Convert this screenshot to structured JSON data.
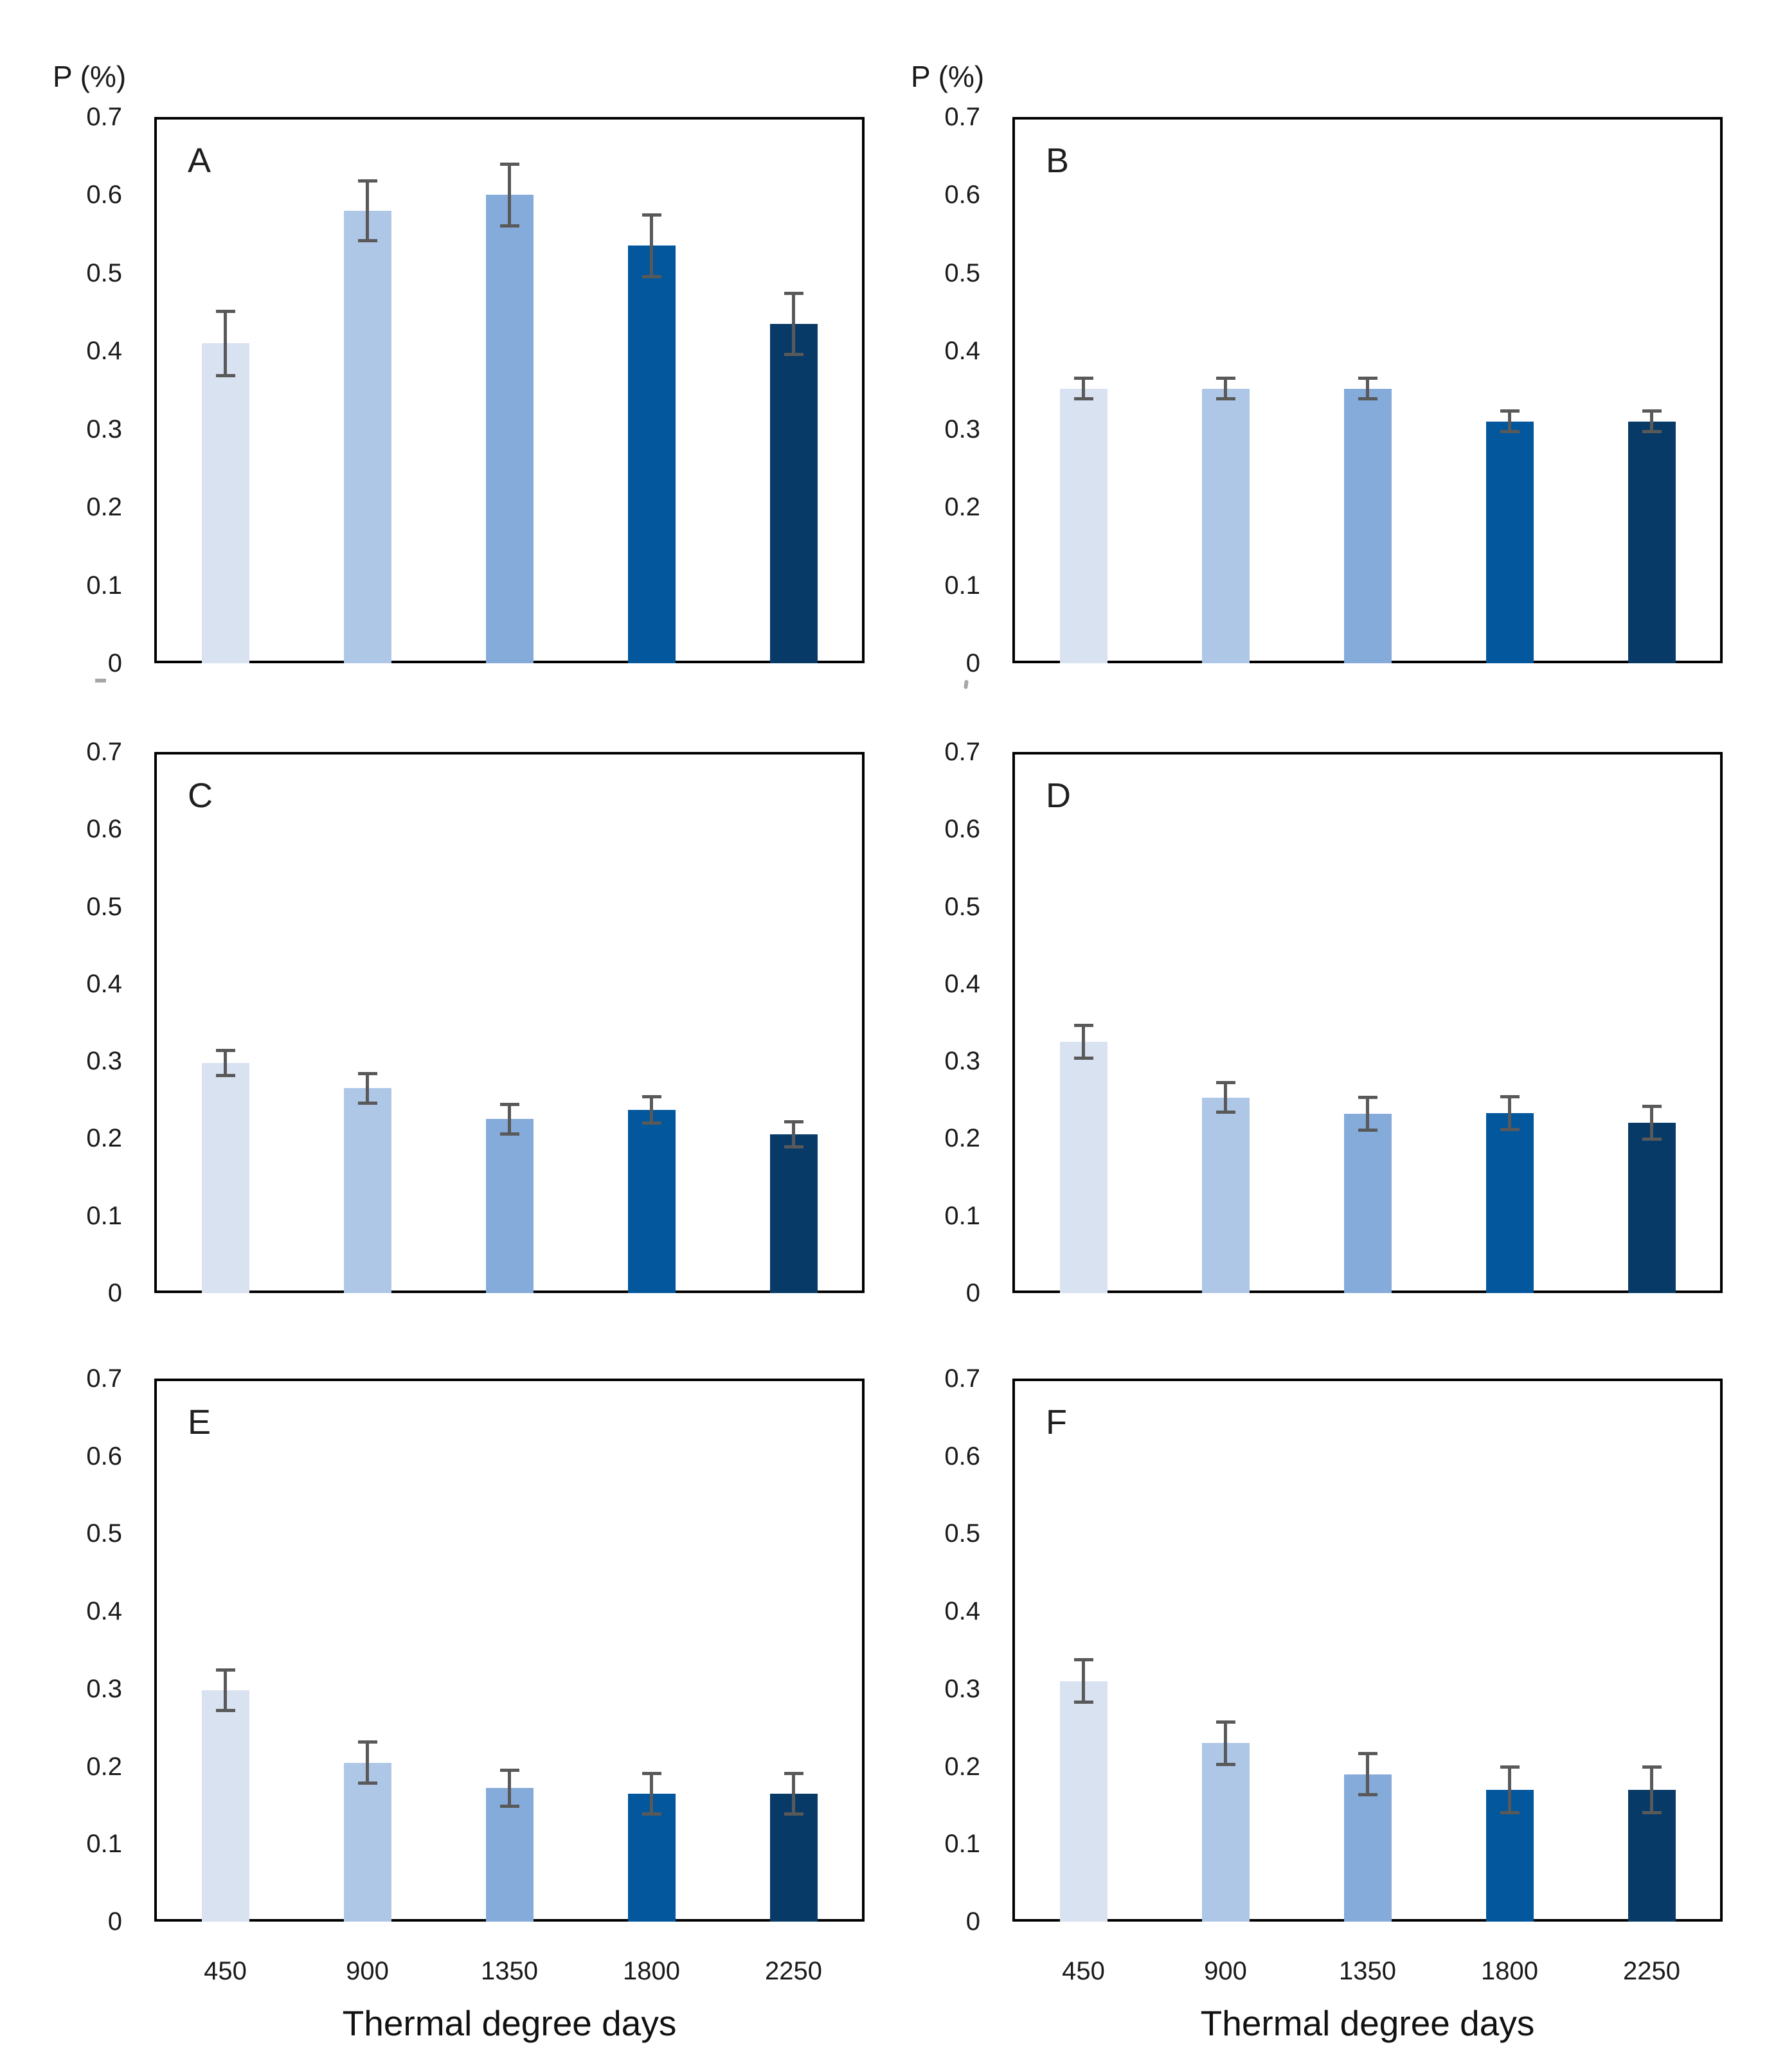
{
  "figure": {
    "y_axis_title": "P (%)",
    "x_axis_title": "Thermal degree days",
    "y_ticks": [
      "0.7",
      "0.6",
      "0.5",
      "0.4",
      "0.3",
      "0.2",
      "0.1",
      "0"
    ],
    "x_ticks": [
      "450",
      "900",
      "1350",
      "1800",
      "2250"
    ],
    "panel_letters": [
      "A",
      "B",
      "C",
      "D",
      "E",
      "F"
    ]
  },
  "colors": {
    "bar_shades": [
      "#d9e2f1",
      "#afc7e7",
      "#85abdb",
      "#02579d",
      "#073a66"
    ],
    "error_bar": "#595959",
    "axis": "#000000",
    "text": "#1a1a1a"
  },
  "chart_data": [
    {
      "panel": "A",
      "type": "bar",
      "categories": [
        450,
        900,
        1350,
        1800,
        2250
      ],
      "values": [
        0.41,
        0.58,
        0.6,
        0.535,
        0.435
      ],
      "errors": [
        0.04,
        0.037,
        0.038,
        0.038,
        0.038
      ],
      "xlabel": "Thermal degree days",
      "ylabel": "P (%)",
      "ylim": [
        0,
        0.7
      ],
      "grid": false,
      "legend": "none"
    },
    {
      "panel": "B",
      "type": "bar",
      "categories": [
        450,
        900,
        1350,
        1800,
        2250
      ],
      "values": [
        0.352,
        0.352,
        0.352,
        0.31,
        0.31
      ],
      "errors": [
        0.012,
        0.012,
        0.012,
        0.012,
        0.012
      ],
      "xlabel": "Thermal degree days",
      "ylabel": "P (%)",
      "ylim": [
        0,
        0.7
      ],
      "grid": false,
      "legend": "none"
    },
    {
      "panel": "C",
      "type": "bar",
      "categories": [
        450,
        900,
        1350,
        1800,
        2250
      ],
      "values": [
        0.298,
        0.265,
        0.225,
        0.237,
        0.205
      ],
      "errors": [
        0.015,
        0.018,
        0.018,
        0.016,
        0.015
      ],
      "xlabel": "Thermal degree days",
      "ylabel": "P (%)",
      "ylim": [
        0,
        0.7
      ],
      "grid": false,
      "legend": "none"
    },
    {
      "panel": "D",
      "type": "bar",
      "categories": [
        450,
        900,
        1350,
        1800,
        2250
      ],
      "values": [
        0.325,
        0.253,
        0.232,
        0.233,
        0.22
      ],
      "errors": [
        0.02,
        0.018,
        0.02,
        0.02,
        0.02
      ],
      "xlabel": "Thermal degree days",
      "ylabel": "P (%)",
      "ylim": [
        0,
        0.7
      ],
      "grid": false,
      "legend": "none"
    },
    {
      "panel": "E",
      "type": "bar",
      "categories": [
        450,
        900,
        1350,
        1800,
        2250
      ],
      "values": [
        0.298,
        0.205,
        0.172,
        0.165,
        0.165
      ],
      "errors": [
        0.025,
        0.025,
        0.022,
        0.025,
        0.025
      ],
      "xlabel": "Thermal degree days",
      "ylabel": "P (%)",
      "ylim": [
        0,
        0.7
      ],
      "grid": false,
      "legend": "none"
    },
    {
      "panel": "F",
      "type": "bar",
      "categories": [
        450,
        900,
        1350,
        1800,
        2250
      ],
      "values": [
        0.31,
        0.23,
        0.19,
        0.17,
        0.17
      ],
      "errors": [
        0.026,
        0.026,
        0.025,
        0.028,
        0.028
      ],
      "xlabel": "Thermal degree days",
      "ylabel": "P (%)",
      "ylim": [
        0,
        0.7
      ],
      "grid": false,
      "legend": "none"
    }
  ]
}
